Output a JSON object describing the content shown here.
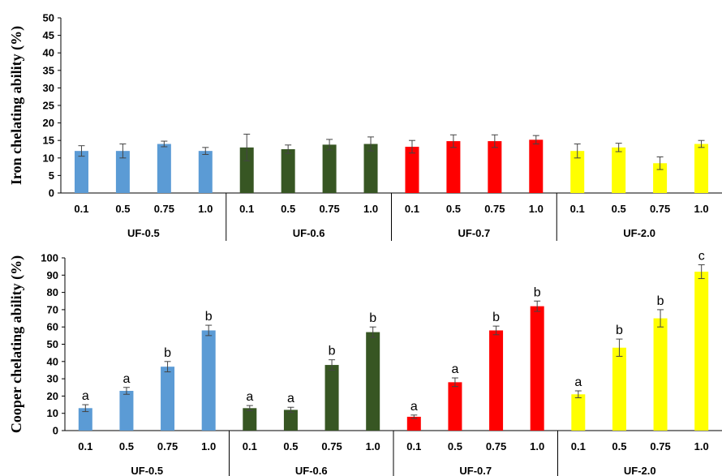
{
  "chart_data": [
    {
      "type": "bar",
      "title": "",
      "xlabel": "",
      "ylabel": "Iron chelating ability  (%)",
      "ylim": [
        0,
        50
      ],
      "yticks": [
        0,
        5,
        10,
        15,
        20,
        25,
        30,
        35,
        40,
        45,
        50
      ],
      "grid": false,
      "groups": [
        {
          "name": "UF-0.5",
          "color": "#5B9BD5",
          "categories": [
            "0.1",
            "0.5",
            "0.75",
            "1.0"
          ],
          "values": [
            12,
            12,
            14,
            12
          ],
          "errors": [
            1.5,
            2,
            0.8,
            1
          ]
        },
        {
          "name": "UF-0.6",
          "color": "#375623",
          "categories": [
            "0.1",
            "0.5",
            "0.75",
            "1.0"
          ],
          "values": [
            13,
            12.5,
            13.8,
            14
          ],
          "errors": [
            3.8,
            1.2,
            1.5,
            2
          ]
        },
        {
          "name": "UF-0.7",
          "color": "#FF0000",
          "categories": [
            "0.1",
            "0.5",
            "0.75",
            "1.0"
          ],
          "values": [
            13.2,
            14.8,
            14.8,
            15.2
          ],
          "errors": [
            1.8,
            1.8,
            1.8,
            1.2
          ]
        },
        {
          "name": "UF-2.0",
          "color": "#FFFF00",
          "categories": [
            "0.1",
            "0.5",
            "0.75",
            "1.0"
          ],
          "values": [
            12,
            13,
            8.5,
            14
          ],
          "errors": [
            2,
            1.2,
            1.8,
            1
          ]
        }
      ]
    },
    {
      "type": "bar",
      "title": "",
      "xlabel": "",
      "ylabel": "Cooper chelating ability  (%)",
      "ylim": [
        0,
        100
      ],
      "yticks": [
        0,
        10,
        20,
        30,
        40,
        50,
        60,
        70,
        80,
        90,
        100
      ],
      "grid": false,
      "groups": [
        {
          "name": "UF-0.5",
          "color": "#5B9BD5",
          "categories": [
            "0.1",
            "0.5",
            "0.75",
            "1.0"
          ],
          "values": [
            13,
            23,
            37,
            58
          ],
          "errors": [
            2,
            2,
            3,
            3
          ],
          "labels": [
            "a",
            "a",
            "b",
            "b"
          ]
        },
        {
          "name": "UF-0.6",
          "color": "#375623",
          "categories": [
            "0.1",
            "0.5",
            "0.75",
            "1.0"
          ],
          "values": [
            13,
            12,
            38,
            57
          ],
          "errors": [
            1.5,
            1.5,
            3,
            3
          ],
          "labels": [
            "a",
            "a",
            "b",
            "b"
          ]
        },
        {
          "name": "UF-0.7",
          "color": "#FF0000",
          "categories": [
            "0.1",
            "0.5",
            "0.75",
            "1.0"
          ],
          "values": [
            8,
            28,
            58,
            72
          ],
          "errors": [
            1,
            2.5,
            2.5,
            3
          ],
          "labels": [
            "a",
            "a",
            "b",
            "b"
          ]
        },
        {
          "name": "UF-2.0",
          "color": "#FFFF00",
          "categories": [
            "0.1",
            "0.5",
            "0.75",
            "1.0"
          ],
          "values": [
            21,
            48,
            65,
            92
          ],
          "errors": [
            2,
            5,
            5,
            4
          ],
          "labels": [
            "a",
            "b",
            "b",
            "c"
          ]
        }
      ]
    }
  ]
}
